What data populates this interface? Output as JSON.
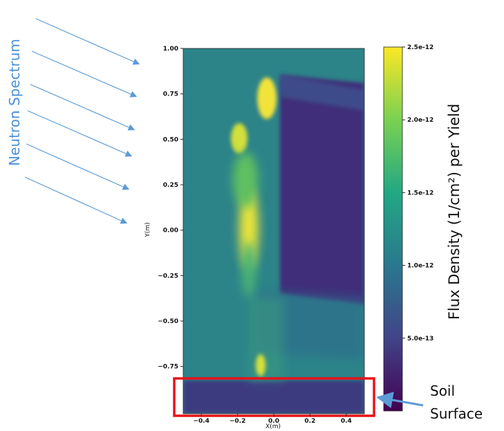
{
  "chart_data": {
    "type": "heatmap",
    "x_label": "X(m)",
    "y_label": "Y(m)",
    "xlim": [
      -0.5,
      0.5
    ],
    "xticks": [
      {
        "value": -0.4,
        "label": "−0.4"
      },
      {
        "value": -0.2,
        "label": "−0.2"
      },
      {
        "value": 0,
        "label": "0.0"
      },
      {
        "value": 0.2,
        "label": "0.2"
      },
      {
        "value": 0.4,
        "label": "0.4"
      }
    ],
    "ylim": [
      -1.01,
      1.0
    ],
    "yticks": [
      {
        "value": 1,
        "label": "1.00"
      },
      {
        "value": 0.75,
        "label": "0.75"
      },
      {
        "value": 0.5,
        "label": "0.50"
      },
      {
        "value": 0.25,
        "label": "0.25"
      },
      {
        "value": 0,
        "label": "0.00"
      },
      {
        "value": -0.25,
        "label": "−0.25"
      },
      {
        "value": -0.5,
        "label": "−0.50"
      },
      {
        "value": -0.75,
        "label": "−0.75"
      }
    ],
    "colorbar_label": "Flux Density (1/cm²) per Yield",
    "clim": [
      0,
      2.5e-12
    ],
    "cticks": [
      {
        "value": 2.5e-12,
        "label": "2.5e-12"
      },
      {
        "value": 2e-12,
        "label": "2.0e-12"
      },
      {
        "value": 1.5e-12,
        "label": "1.5e-12"
      },
      {
        "value": 1e-12,
        "label": "1.0e-12"
      },
      {
        "value": 5e-13,
        "label": "5.0e-13"
      }
    ],
    "colormap": [
      "#440154",
      "#414487",
      "#2a788e",
      "#22a884",
      "#7ad151",
      "#fde725"
    ],
    "annotations": {
      "neutron_spectrum": "Neutron Spectrum",
      "soil_surface": [
        "Soil",
        "Surface"
      ]
    }
  }
}
